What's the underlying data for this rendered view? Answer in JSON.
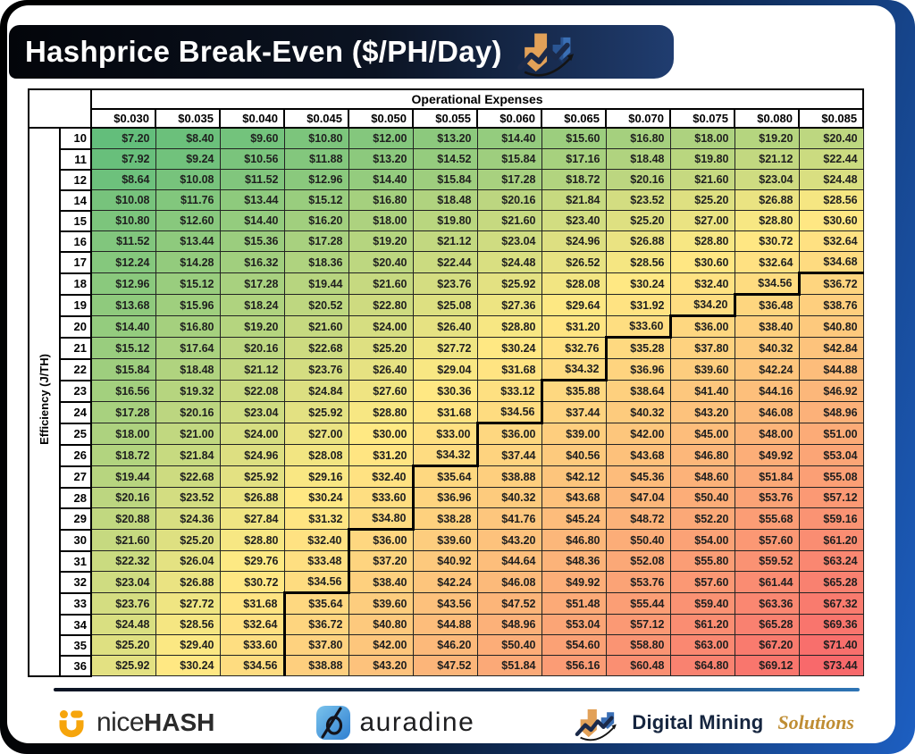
{
  "window": {
    "title": "Hashprice Break-Even ($/PH/Day)"
  },
  "chart_data": {
    "type": "heatmap",
    "title": "Hashprice Break-Even ($/PH/Day)",
    "col_group_label": "Operational Expenses",
    "row_group_label": "Efficiency (J/TH)",
    "columns": [
      "$0.030",
      "$0.035",
      "$0.040",
      "$0.045",
      "$0.050",
      "$0.055",
      "$0.060",
      "$0.065",
      "$0.070",
      "$0.075",
      "$0.080",
      "$0.085"
    ],
    "rows": [
      10,
      11,
      12,
      14,
      15,
      16,
      17,
      18,
      19,
      20,
      21,
      22,
      23,
      24,
      25,
      26,
      27,
      28,
      29,
      30,
      31,
      32,
      33,
      34,
      35,
      36
    ],
    "values": [
      [
        7.2,
        8.4,
        9.6,
        10.8,
        12.0,
        13.2,
        14.4,
        15.6,
        16.8,
        18.0,
        19.2,
        20.4
      ],
      [
        7.92,
        9.24,
        10.56,
        11.88,
        13.2,
        14.52,
        15.84,
        17.16,
        18.48,
        19.8,
        21.12,
        22.44
      ],
      [
        8.64,
        10.08,
        11.52,
        12.96,
        14.4,
        15.84,
        17.28,
        18.72,
        20.16,
        21.6,
        23.04,
        24.48
      ],
      [
        10.08,
        11.76,
        13.44,
        15.12,
        16.8,
        18.48,
        20.16,
        21.84,
        23.52,
        25.2,
        26.88,
        28.56
      ],
      [
        10.8,
        12.6,
        14.4,
        16.2,
        18.0,
        19.8,
        21.6,
        23.4,
        25.2,
        27.0,
        28.8,
        30.6
      ],
      [
        11.52,
        13.44,
        15.36,
        17.28,
        19.2,
        21.12,
        23.04,
        24.96,
        26.88,
        28.8,
        30.72,
        32.64
      ],
      [
        12.24,
        14.28,
        16.32,
        18.36,
        20.4,
        22.44,
        24.48,
        26.52,
        28.56,
        30.6,
        32.64,
        34.68
      ],
      [
        12.96,
        15.12,
        17.28,
        19.44,
        21.6,
        23.76,
        25.92,
        28.08,
        30.24,
        32.4,
        34.56,
        36.72
      ],
      [
        13.68,
        15.96,
        18.24,
        20.52,
        22.8,
        25.08,
        27.36,
        29.64,
        31.92,
        34.2,
        36.48,
        38.76
      ],
      [
        14.4,
        16.8,
        19.2,
        21.6,
        24.0,
        26.4,
        28.8,
        31.2,
        33.6,
        36.0,
        38.4,
        40.8
      ],
      [
        15.12,
        17.64,
        20.16,
        22.68,
        25.2,
        27.72,
        30.24,
        32.76,
        35.28,
        37.8,
        40.32,
        42.84
      ],
      [
        15.84,
        18.48,
        21.12,
        23.76,
        26.4,
        29.04,
        31.68,
        34.32,
        36.96,
        39.6,
        42.24,
        44.88
      ],
      [
        16.56,
        19.32,
        22.08,
        24.84,
        27.6,
        30.36,
        33.12,
        35.88,
        38.64,
        41.4,
        44.16,
        46.92
      ],
      [
        17.28,
        20.16,
        23.04,
        25.92,
        28.8,
        31.68,
        34.56,
        37.44,
        40.32,
        43.2,
        46.08,
        48.96
      ],
      [
        18.0,
        21.0,
        24.0,
        27.0,
        30.0,
        33.0,
        36.0,
        39.0,
        42.0,
        45.0,
        48.0,
        51.0
      ],
      [
        18.72,
        21.84,
        24.96,
        28.08,
        31.2,
        34.32,
        37.44,
        40.56,
        43.68,
        46.8,
        49.92,
        53.04
      ],
      [
        19.44,
        22.68,
        25.92,
        29.16,
        32.4,
        35.64,
        38.88,
        42.12,
        45.36,
        48.6,
        51.84,
        55.08
      ],
      [
        20.16,
        23.52,
        26.88,
        30.24,
        33.6,
        36.96,
        40.32,
        43.68,
        47.04,
        50.4,
        53.76,
        57.12
      ],
      [
        20.88,
        24.36,
        27.84,
        31.32,
        34.8,
        38.28,
        41.76,
        45.24,
        48.72,
        52.2,
        55.68,
        59.16
      ],
      [
        21.6,
        25.2,
        28.8,
        32.4,
        36.0,
        39.6,
        43.2,
        46.8,
        50.4,
        54.0,
        57.6,
        61.2
      ],
      [
        22.32,
        26.04,
        29.76,
        33.48,
        37.2,
        40.92,
        44.64,
        48.36,
        52.08,
        55.8,
        59.52,
        63.24
      ],
      [
        23.04,
        26.88,
        30.72,
        34.56,
        38.4,
        42.24,
        46.08,
        49.92,
        53.76,
        57.6,
        61.44,
        65.28
      ],
      [
        23.76,
        27.72,
        31.68,
        35.64,
        39.6,
        43.56,
        47.52,
        51.48,
        55.44,
        59.4,
        63.36,
        67.32
      ],
      [
        24.48,
        28.56,
        32.64,
        36.72,
        40.8,
        44.88,
        48.96,
        53.04,
        57.12,
        61.2,
        65.28,
        69.36
      ],
      [
        25.2,
        29.4,
        33.6,
        37.8,
        42.0,
        46.2,
        50.4,
        54.6,
        58.8,
        63.0,
        67.2,
        71.4
      ],
      [
        25.92,
        30.24,
        34.56,
        38.88,
        43.2,
        47.52,
        51.84,
        56.16,
        60.48,
        64.8,
        69.12,
        73.44
      ]
    ],
    "value_prefix": "$",
    "break_even_threshold": 35,
    "colorscale": {
      "min": 7.2,
      "mid": 30,
      "max": 73.44,
      "min_color": "#63be7b",
      "mid_color": "#ffe983",
      "max_color": "#f8696b"
    },
    "grid": true,
    "legend": "none"
  },
  "footer": {
    "brands": [
      {
        "name": "nicehash",
        "word_light": "nice",
        "word_bold": "hash",
        "accent_color": "#f6a50c"
      },
      {
        "name": "auradine",
        "word": "auradine",
        "accent_color": "#4ba3e3"
      },
      {
        "name": "digital-mining-solutions",
        "word_primary": "Digital Mining",
        "word_accent": "Solutions",
        "accent_color": "#bf8d33"
      }
    ]
  },
  "frame": {
    "border_gradient_start": "#000000",
    "border_gradient_end": "#1d5fc2",
    "titlebar_color": "#0b1322"
  }
}
